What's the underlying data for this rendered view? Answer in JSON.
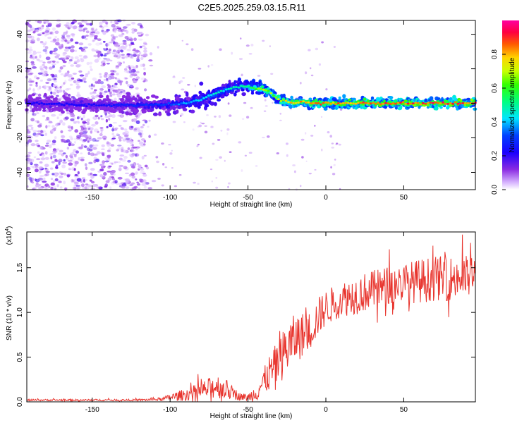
{
  "title": "C2E5.2025.259.03.15.R11",
  "chart_data": [
    {
      "type": "heatmap",
      "xlabel": "Height of straight line (km)",
      "ylabel": "Frequency (Hz)",
      "xlim": [
        -192,
        96
      ],
      "ylim": [
        -50,
        48
      ],
      "xticks": [
        -150,
        -100,
        -50,
        0,
        50
      ],
      "yticks": [
        -40,
        -20,
        0,
        20,
        40
      ],
      "colorbar": {
        "label": "Normalized spectral amplitude",
        "range": [
          0.0,
          1.0
        ],
        "ticks": [
          "0.0",
          "0.2",
          "0.4",
          "0.6",
          "0.8"
        ]
      },
      "ridge": {
        "x": [
          -192,
          -150,
          -120,
          -100,
          -90,
          -80,
          -70,
          -60,
          -52,
          -45,
          -40,
          -35,
          -30,
          -25,
          -20,
          -15,
          -10,
          -5,
          0,
          20,
          50,
          96
        ],
        "frequency": [
          0,
          -1,
          -1,
          -1,
          0,
          2,
          6,
          9,
          10,
          9,
          8,
          6,
          2,
          1,
          0,
          1,
          0,
          0,
          0,
          0,
          0,
          0
        ],
        "amplitude": [
          0.25,
          0.25,
          0.3,
          0.35,
          0.4,
          0.45,
          0.5,
          0.5,
          0.55,
          0.7,
          0.75,
          0.7,
          0.75,
          0.8,
          0.85,
          0.85,
          0.9,
          0.9,
          0.9,
          0.9,
          0.95,
          0.95
        ]
      },
      "noise_region_x": [
        -192,
        -110
      ]
    },
    {
      "type": "line",
      "xlabel": "Height of straight line (km)",
      "ylabel": "SNR (10 * v/v)",
      "exponent_label": "(x10",
      "exponent_power": "4",
      "exponent_close": ")",
      "xlim": [
        -192,
        96
      ],
      "ylim": [
        0,
        1.9
      ],
      "xticks": [
        -150,
        -100,
        -50,
        0,
        50
      ],
      "yticks": [
        "0.0",
        "0.5",
        "1.0",
        "1.5"
      ],
      "ytick_values": [
        0,
        0.5,
        1.0,
        1.5
      ],
      "color": "#e8352e",
      "envelope": {
        "x": [
          -192,
          -120,
          -105,
          -100,
          -90,
          -80,
          -70,
          -65,
          -60,
          -55,
          -50,
          -45,
          -40,
          -35,
          -30,
          -25,
          -20,
          -15,
          -10,
          -5,
          0,
          10,
          20,
          30,
          40,
          50,
          60,
          70,
          80,
          96
        ],
        "mean": [
          0.02,
          0.02,
          0.03,
          0.05,
          0.08,
          0.12,
          0.18,
          0.15,
          0.1,
          0.06,
          0.05,
          0.1,
          0.22,
          0.35,
          0.45,
          0.6,
          0.7,
          0.75,
          0.8,
          0.95,
          1.05,
          1.15,
          1.2,
          1.25,
          1.3,
          1.33,
          1.35,
          1.38,
          1.38,
          1.4
        ],
        "spread": [
          0.01,
          0.01,
          0.02,
          0.04,
          0.07,
          0.1,
          0.14,
          0.12,
          0.08,
          0.04,
          0.04,
          0.1,
          0.15,
          0.22,
          0.25,
          0.3,
          0.28,
          0.25,
          0.22,
          0.22,
          0.2,
          0.2,
          0.22,
          0.22,
          0.22,
          0.22,
          0.25,
          0.25,
          0.25,
          0.25
        ]
      }
    }
  ]
}
